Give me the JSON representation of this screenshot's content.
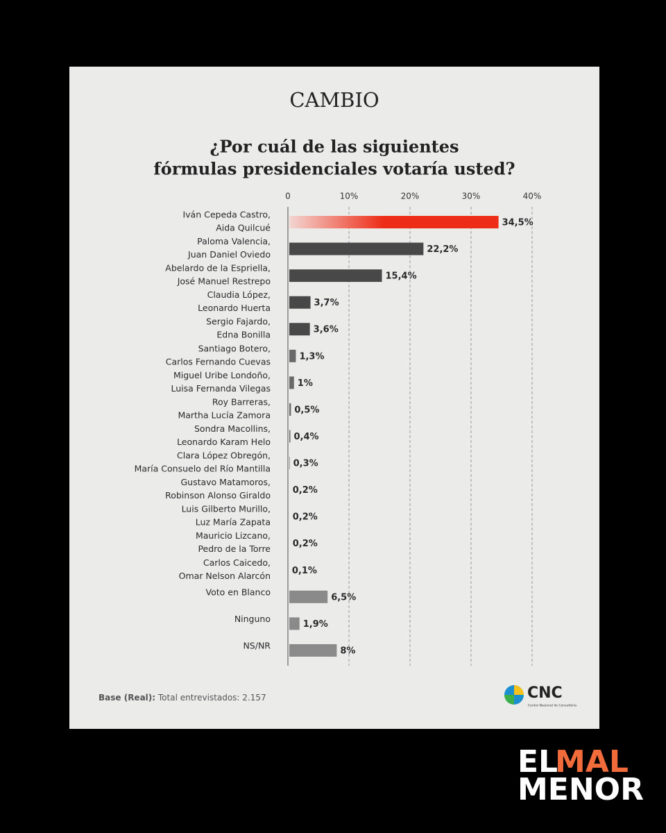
{
  "chart_data": {
    "type": "bar",
    "orientation": "horizontal",
    "publisher": "CAMBIO",
    "title": [
      "¿Por cuál de las siguientes",
      "fórmulas presidenciales votaría usted?"
    ],
    "categories": [
      [
        "Iván Cepeda Castro,",
        "Aida Quilcué"
      ],
      [
        "Paloma Valencia,",
        "Juan Daniel Oviedo"
      ],
      [
        "Abelardo de la Espriella,",
        "José Manuel Restrepo"
      ],
      [
        "Claudia López,",
        "Leonardo Huerta"
      ],
      [
        "Sergio Fajardo,",
        "Edna Bonilla"
      ],
      [
        "Santiago Botero,",
        "Carlos Fernando Cuevas"
      ],
      [
        "Miguel Uribe Londoño,",
        "Luisa Fernanda Vilegas"
      ],
      [
        "Roy Barreras,",
        "Martha Lucía Zamora"
      ],
      [
        "Sondra Macollins,",
        "Leonardo Karam Helo"
      ],
      [
        "Clara López Obregón,",
        "María Consuelo del Río Mantilla"
      ],
      [
        "Gustavo Matamoros,",
        "Robinson Alonso Giraldo"
      ],
      [
        "Luis Gilberto Murillo,",
        "Luz María Zapata"
      ],
      [
        "Mauricio Lizcano,",
        "Pedro de la Torre"
      ],
      [
        "Carlos Caicedo,",
        "Omar Nelson Alarcón"
      ],
      [
        "Voto en Blanco"
      ],
      [
        "Ninguno"
      ],
      [
        "NS/NR"
      ]
    ],
    "values": [
      34.5,
      22.2,
      15.4,
      3.7,
      3.6,
      1.3,
      1,
      0.5,
      0.4,
      0.3,
      0.2,
      0.2,
      0.2,
      0.1,
      6.5,
      1.9,
      8
    ],
    "value_labels": [
      "34,5%",
      "22,2%",
      "15,4%",
      "3,7%",
      "3,6%",
      "1,3%",
      "1%",
      "0,5%",
      "0,4%",
      "0,3%",
      "0,2%",
      "0,2%",
      "0,2%",
      "0,1%",
      "6,5%",
      "1,9%",
      "8%"
    ],
    "colors": [
      "#ee2d17",
      "#484848",
      "#484848",
      "#484848",
      "#484848",
      "#6a6a6a",
      "#6a6a6a",
      "#6a6a6a",
      "#6a6a6a",
      "#6a6a6a",
      "#6a6a6a",
      "#6a6a6a",
      "#6a6a6a",
      "#6a6a6a",
      "#8a8a8a",
      "#8a8a8a",
      "#8a8a8a"
    ],
    "highlight": 0,
    "xlim": [
      0,
      40
    ],
    "xticks": [
      0,
      {
        "value": 10,
        "label": "10%"
      },
      {
        "value": 20,
        "label": "20%"
      },
      {
        "value": 30,
        "label": "30%"
      },
      {
        "value": 40,
        "label": "40%"
      }
    ],
    "grid": true,
    "note_label": "Base (Real):",
    "note": "Total entrevistados: 2.157",
    "logo": {
      "name": "CNC",
      "subtitle": "Centro Nacional de Consultoría"
    },
    "watermark": [
      "EL",
      "MAL",
      "MENOR"
    ]
  }
}
